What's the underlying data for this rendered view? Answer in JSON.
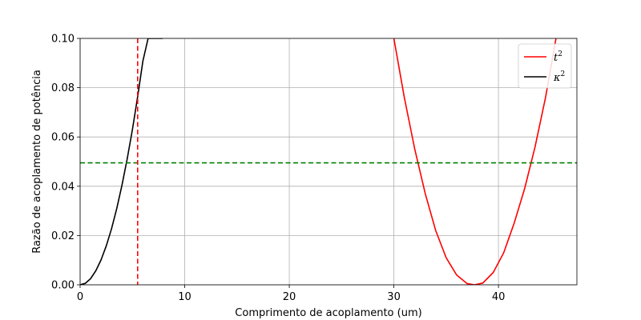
{
  "chart_data": {
    "type": "line",
    "xlabel": "Comprimento de acoplamento (um)",
    "ylabel": "Razão de acoplamento de potência",
    "xlim": [
      0,
      47.5
    ],
    "ylim": [
      0,
      0.1
    ],
    "xticks": [
      0,
      10,
      20,
      30,
      40
    ],
    "yticks": [
      0.0,
      0.02,
      0.04,
      0.06,
      0.08,
      0.1
    ],
    "xtick_labels": [
      "0",
      "10",
      "20",
      "30",
      "40"
    ],
    "ytick_labels": [
      "0.00",
      "0.02",
      "0.04",
      "0.06",
      "0.08",
      "0.10"
    ],
    "grid": true,
    "legend_position": "top-right",
    "series": [
      {
        "name": "t",
        "name_superscript": "2",
        "color": "#ff0000",
        "x": [
          30,
          31,
          32,
          33,
          34,
          35,
          36,
          37,
          37.7,
          38.5,
          39.5,
          40.5,
          41.5,
          42.5,
          43.5,
          44.5,
          45.5
        ],
        "y": [
          0.1,
          0.076,
          0.055,
          0.037,
          0.022,
          0.011,
          0.004,
          0.0005,
          0.0,
          0.0007,
          0.005,
          0.013,
          0.025,
          0.039,
          0.056,
          0.076,
          0.1
        ]
      },
      {
        "name": "κ",
        "name_superscript": "2",
        "color": "#000000",
        "x": [
          0,
          0.5,
          1,
          1.5,
          2,
          2.5,
          3,
          3.5,
          4,
          4.5,
          5,
          5.5,
          6,
          6.5,
          7,
          7.5,
          7.9
        ],
        "y": [
          0.0,
          0.0006,
          0.0025,
          0.0057,
          0.0101,
          0.0158,
          0.0227,
          0.0309,
          0.0404,
          0.0511,
          0.063,
          0.0763,
          0.0908,
          0.1,
          0.1,
          0.1,
          0.1
        ]
      }
    ],
    "reference_lines": [
      {
        "orientation": "horizontal",
        "value": 0.0495,
        "color": "#008000",
        "style": "dashed"
      },
      {
        "orientation": "vertical",
        "value": 5.5,
        "color": "#ff0000",
        "style": "dashed"
      }
    ]
  }
}
